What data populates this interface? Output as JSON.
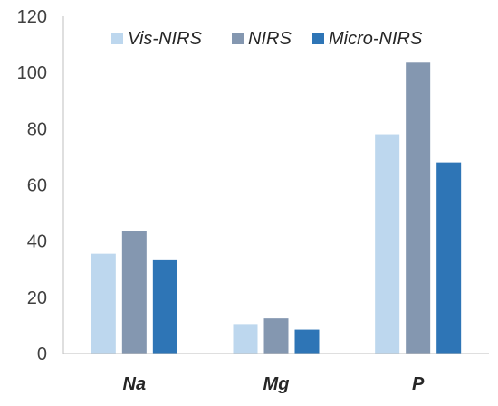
{
  "chart_data": {
    "type": "bar",
    "title": "",
    "xlabel": "",
    "ylabel": "",
    "categories": [
      "Na",
      "Mg",
      "P"
    ],
    "series": [
      {
        "name": "Vis-NIRS",
        "values": [
          35.5,
          10.5,
          78
        ],
        "color": "#bdd7ee"
      },
      {
        "name": "NIRS",
        "values": [
          43.5,
          12.5,
          103.5
        ],
        "color": "#8497b0"
      },
      {
        "name": "Micro-NIRS",
        "values": [
          33.5,
          8.5,
          68
        ],
        "color": "#2e75b6"
      }
    ],
    "ylim": [
      0,
      120
    ],
    "yticks": [
      "0",
      "20",
      "40",
      "60",
      "80",
      "100",
      "120"
    ],
    "legend_position": "top",
    "grid": false,
    "axis_color": "#bfbfbf"
  }
}
